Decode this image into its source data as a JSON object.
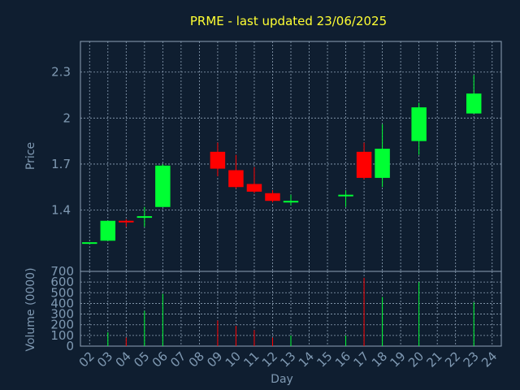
{
  "title": "PRME - last updated 23/06/2025",
  "chart_data": {
    "type": "candlestick",
    "title": "PRME - last updated 23/06/2025",
    "xlabel": "Day",
    "ylabel_price": "Price",
    "ylabel_volume": "Volume (0000)",
    "x_ticks": [
      "02",
      "03",
      "04",
      "05",
      "06",
      "07",
      "08",
      "09",
      "10",
      "11",
      "12",
      "13",
      "14",
      "15",
      "16",
      "17",
      "18",
      "19",
      "20",
      "21",
      "22",
      "23",
      "24"
    ],
    "price_ticks": [
      1.4,
      1.7,
      2,
      2.3
    ],
    "price_tick_labels": [
      "1.4",
      "1.7",
      "2",
      "2.3"
    ],
    "price_range": [
      1.0,
      2.5
    ],
    "volume_ticks": [
      0,
      100,
      200,
      300,
      400,
      500,
      600,
      700
    ],
    "volume_range": [
      0,
      700
    ],
    "grid": true,
    "up_color": "#00ff33",
    "down_color": "#ff0000",
    "candles": [
      {
        "day": "02",
        "open": 1.19,
        "close": 1.19,
        "high": 1.19,
        "low": 1.19,
        "volume": 0
      },
      {
        "day": "03",
        "open": 1.2,
        "close": 1.33,
        "high": 1.33,
        "low": 1.2,
        "volume": 130
      },
      {
        "day": "04",
        "open": 1.33,
        "close": 1.32,
        "high": 1.34,
        "low": 1.29,
        "volume": 80
      },
      {
        "day": "05",
        "open": 1.35,
        "close": 1.36,
        "high": 1.42,
        "low": 1.29,
        "volume": 330
      },
      {
        "day": "06",
        "open": 1.42,
        "close": 1.69,
        "high": 1.7,
        "low": 1.42,
        "volume": 490
      },
      {
        "day": "09",
        "open": 1.78,
        "close": 1.67,
        "high": 1.84,
        "low": 1.62,
        "volume": 240
      },
      {
        "day": "10",
        "open": 1.66,
        "close": 1.55,
        "high": 1.76,
        "low": 1.54,
        "volume": 190
      },
      {
        "day": "11",
        "open": 1.57,
        "close": 1.52,
        "high": 1.68,
        "low": 1.51,
        "volume": 150
      },
      {
        "day": "12",
        "open": 1.51,
        "close": 1.46,
        "high": 1.53,
        "low": 1.45,
        "volume": 80
      },
      {
        "day": "13",
        "open": 1.45,
        "close": 1.46,
        "high": 1.5,
        "low": 1.43,
        "volume": 100
      },
      {
        "day": "16",
        "open": 1.49,
        "close": 1.5,
        "high": 1.53,
        "low": 1.42,
        "volume": 100
      },
      {
        "day": "17",
        "open": 1.78,
        "close": 1.61,
        "high": 1.84,
        "low": 1.6,
        "volume": 640
      },
      {
        "day": "18",
        "open": 1.61,
        "close": 1.8,
        "high": 1.96,
        "low": 1.55,
        "volume": 460
      },
      {
        "day": "20",
        "open": 1.85,
        "close": 2.07,
        "high": 2.1,
        "low": 1.76,
        "volume": 600
      },
      {
        "day": "23",
        "open": 2.03,
        "close": 2.16,
        "high": 2.28,
        "low": 2.03,
        "volume": 410
      }
    ]
  }
}
